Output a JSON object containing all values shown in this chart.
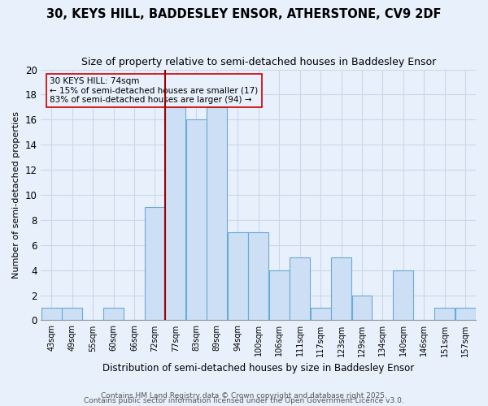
{
  "title": "30, KEYS HILL, BADDESLEY ENSOR, ATHERSTONE, CV9 2DF",
  "subtitle": "Size of property relative to semi-detached houses in Baddesley Ensor",
  "xlabel": "Distribution of semi-detached houses by size in Baddesley Ensor",
  "ylabel": "Number of semi-detached properties",
  "bin_labels": [
    "43sqm",
    "49sqm",
    "55sqm",
    "60sqm",
    "66sqm",
    "72sqm",
    "77sqm",
    "83sqm",
    "89sqm",
    "94sqm",
    "100sqm",
    "106sqm",
    "111sqm",
    "117sqm",
    "123sqm",
    "129sqm",
    "134sqm",
    "140sqm",
    "146sqm",
    "151sqm",
    "157sqm"
  ],
  "counts": [
    1,
    1,
    0,
    1,
    0,
    9,
    17,
    16,
    17,
    7,
    7,
    4,
    5,
    1,
    5,
    2,
    0,
    4,
    0,
    1,
    1
  ],
  "bar_color": "#ccdff5",
  "bar_edgecolor": "#6aaad4",
  "bg_color": "#e8f0fb",
  "grid_color": "#c8d8ea",
  "vline_bin_index": 6,
  "vline_color": "#990000",
  "annotation_text": "30 KEYS HILL: 74sqm\n← 15% of semi-detached houses are smaller (17)\n83% of semi-detached houses are larger (94) →",
  "annotation_box_edgecolor": "#cc0000",
  "ylim": [
    0,
    20
  ],
  "yticks": [
    0,
    2,
    4,
    6,
    8,
    10,
    12,
    14,
    16,
    18,
    20
  ],
  "footer1": "Contains HM Land Registry data © Crown copyright and database right 2025.",
  "footer2": "Contains public sector information licensed under the Open Government Licence v3.0.",
  "title_fontsize": 10.5,
  "subtitle_fontsize": 9,
  "annotation_fontsize": 7.5,
  "footer_fontsize": 6.5
}
